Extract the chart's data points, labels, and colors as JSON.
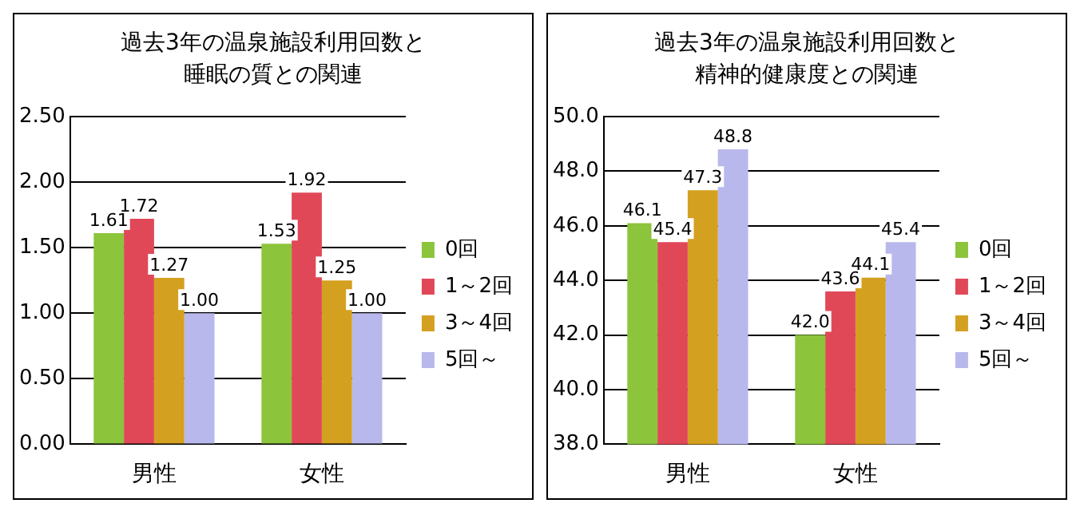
{
  "chart_data": [
    {
      "type": "bar",
      "title": "過去3年の温泉施設利用回数と睡眠の質との関連",
      "categories": [
        "男性",
        "女性"
      ],
      "series": [
        {
          "name": "0回",
          "color": "#8cc43c",
          "values": [
            1.61,
            1.53
          ]
        },
        {
          "name": "1～2回",
          "color": "#e04858",
          "values": [
            1.72,
            1.92
          ]
        },
        {
          "name": "3～4回",
          "color": "#d4a020",
          "values": [
            1.27,
            1.25
          ]
        },
        {
          "name": "5回～",
          "color": "#b8b8ec",
          "values": [
            1.0,
            1.0
          ]
        }
      ],
      "ylim": [
        0,
        2.5
      ],
      "yticks": [
        {
          "value": 0,
          "label": "0.00"
        },
        {
          "value": 0.5,
          "label": "0.50"
        },
        {
          "value": 1,
          "label": "1.00"
        },
        {
          "value": 1.5,
          "label": "1.50"
        },
        {
          "value": 2,
          "label": "2.00"
        },
        {
          "value": 2.5,
          "label": "2.50"
        }
      ],
      "value_labels": [
        "1.61",
        "1.53",
        "1.72",
        "1.92",
        "1.27",
        "1.25",
        "1.00",
        "1.00"
      ],
      "grid": "y",
      "legend": "right"
    },
    {
      "type": "bar",
      "title": "過去3年の温泉施設利用回数と精神的健康度との関連",
      "categories": [
        "男性",
        "女性"
      ],
      "series": [
        {
          "name": "0回",
          "color": "#8cc43c",
          "values": [
            46.1,
            42.0
          ]
        },
        {
          "name": "1～2回",
          "color": "#e04858",
          "values": [
            45.4,
            43.6
          ]
        },
        {
          "name": "3～4回",
          "color": "#d4a020",
          "values": [
            47.3,
            44.1
          ]
        },
        {
          "name": "5回～",
          "color": "#b8b8ec",
          "values": [
            48.8,
            45.4
          ]
        }
      ],
      "ylim": [
        38,
        50
      ],
      "yticks": [
        {
          "value": 38,
          "label": "38.0"
        },
        {
          "value": 40,
          "label": "40.0"
        },
        {
          "value": 42,
          "label": "42.0"
        },
        {
          "value": 44,
          "label": "44.0"
        },
        {
          "value": 46,
          "label": "46.0"
        },
        {
          "value": 48,
          "label": "48.0"
        },
        {
          "value": 50,
          "label": "50.0"
        }
      ],
      "value_labels": [
        "46.1",
        "42.0",
        "45.4",
        "43.6",
        "47.3",
        "44.1",
        "48.8",
        "45.4"
      ],
      "grid": "y",
      "legend": "right"
    }
  ]
}
